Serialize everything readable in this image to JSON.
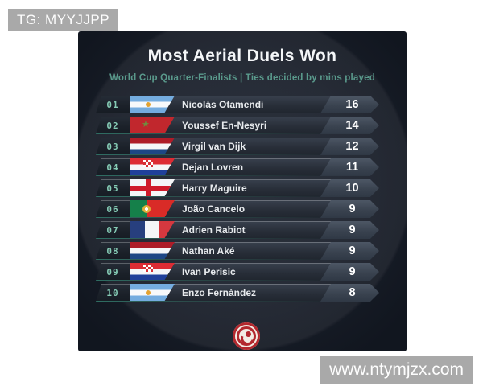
{
  "page": {
    "tg_badge": "TG: MYYJJPP",
    "watermark": "www.ntymjzx.com"
  },
  "card": {
    "title": "Most Aerial Duels Won",
    "subtitle": "World Cup Quarter-Finalists | Ties decided by mins played",
    "logo_icon": "red-swirl-logo",
    "rows": [
      {
        "rank": "01",
        "flag": "argentina",
        "player": "Nicolás Otamendi",
        "value": "16"
      },
      {
        "rank": "02",
        "flag": "morocco",
        "player": "Youssef En-Nesyri",
        "value": "14"
      },
      {
        "rank": "03",
        "flag": "netherlands",
        "player": "Virgil van Dijk",
        "value": "12"
      },
      {
        "rank": "04",
        "flag": "croatia",
        "player": "Dejan Lovren",
        "value": "11"
      },
      {
        "rank": "05",
        "flag": "england",
        "player": "Harry Maguire",
        "value": "10"
      },
      {
        "rank": "06",
        "flag": "portugal",
        "player": "João Cancelo",
        "value": "9"
      },
      {
        "rank": "07",
        "flag": "france",
        "player": "Adrien Rabiot",
        "value": "9"
      },
      {
        "rank": "08",
        "flag": "netherlands",
        "player": "Nathan Aké",
        "value": "9"
      },
      {
        "rank": "09",
        "flag": "croatia",
        "player": "Ivan Perisic",
        "value": "9"
      },
      {
        "rank": "10",
        "flag": "argentina",
        "player": "Enzo Fernández",
        "value": "8"
      }
    ]
  },
  "colors": {
    "card_background": "#161c27",
    "subtitle_teal": "#5a9a8c",
    "rank_mint": "#85cbb5",
    "row_slate": "#2c3440",
    "badge_slate": "#3f4856",
    "logo_red": "#b3282e",
    "overlay_gray": "#a9a9a9"
  },
  "chart_data": {
    "type": "table",
    "title": "Most Aerial Duels Won",
    "subtitle": "World Cup Quarter-Finalists | Ties decided by mins played",
    "columns": [
      "rank",
      "country",
      "player",
      "aerial_duels_won"
    ],
    "rows": [
      [
        1,
        "Argentina",
        "Nicolás Otamendi",
        16
      ],
      [
        2,
        "Morocco",
        "Youssef En-Nesyri",
        14
      ],
      [
        3,
        "Netherlands",
        "Virgil van Dijk",
        12
      ],
      [
        4,
        "Croatia",
        "Dejan Lovren",
        11
      ],
      [
        5,
        "England",
        "Harry Maguire",
        10
      ],
      [
        6,
        "Portugal",
        "João Cancelo",
        9
      ],
      [
        7,
        "France",
        "Adrien Rabiot",
        9
      ],
      [
        8,
        "Netherlands",
        "Nathan Aké",
        9
      ],
      [
        9,
        "Croatia",
        "Ivan Perisic",
        9
      ],
      [
        10,
        "Argentina",
        "Enzo Fernández",
        8
      ]
    ],
    "value_range": [
      8,
      16
    ],
    "sort": "descending by aerial_duels_won"
  }
}
